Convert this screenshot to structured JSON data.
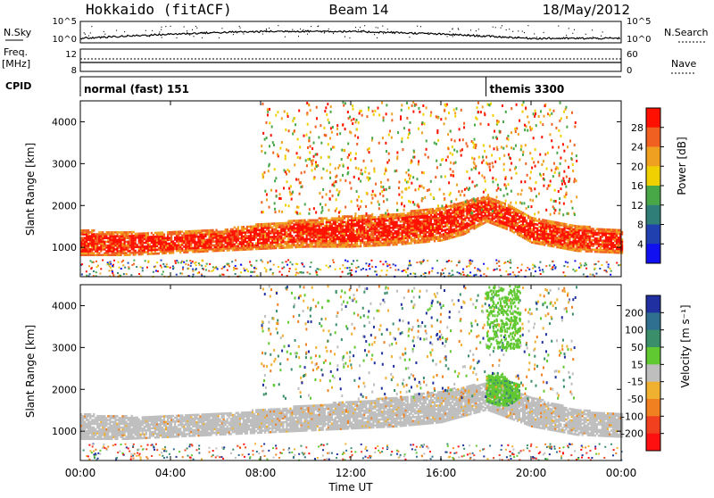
{
  "header": {
    "station": "Hokkaido (fitACF)",
    "beam": "Beam 14",
    "date": "18/May/2012"
  },
  "strip": {
    "nsky_label": "N.Sky",
    "nsky_ticks": [
      "10^5",
      "10^0"
    ],
    "nsearch_label": "N.Search",
    "nsearch_ticks": [
      "10^5",
      "10^0"
    ],
    "freq_label": "Freq.",
    "freq_unit": "[MHz]",
    "freq_ticks": [
      "12",
      "8"
    ],
    "nave_label": "Nave",
    "nave_ticks": [
      "60",
      "0"
    ],
    "cpid_label": "CPID",
    "cpid_segments": [
      {
        "name": "normal (fast) 151",
        "start_hour": 0,
        "end_hour": 18
      },
      {
        "name": "themis 3300",
        "start_hour": 18,
        "end_hour": 24
      }
    ]
  },
  "power_panel": {
    "ylabel": "Slant Range [km]",
    "yticks": [
      "1000",
      "2000",
      "3000",
      "4000"
    ],
    "colorbar_label": "Power [dB]",
    "colorbar_ticks": [
      "4",
      "8",
      "12",
      "16",
      "20",
      "24",
      "28"
    ],
    "colors": [
      "#1010f0",
      "#2040b0",
      "#2f7f78",
      "#48a848",
      "#f0d000",
      "#f0a020",
      "#f06020",
      "#ff1000"
    ]
  },
  "velocity_panel": {
    "ylabel": "Slant Range [km]",
    "yticks": [
      "1000",
      "2000",
      "3000",
      "4000"
    ],
    "colorbar_label": "Velocity [m s⁻¹]",
    "colorbar_ticks": [
      "200",
      "100",
      "50",
      "15",
      "-15",
      "-50",
      "-100",
      "-200"
    ],
    "colors": [
      "#2030a0",
      "#2f6f90",
      "#3a8f6a",
      "#60c830",
      "#bebebe",
      "#f0b030",
      "#f08020",
      "#f04020",
      "#ff1010"
    ]
  },
  "xaxis": {
    "label": "Time UT",
    "ticks": [
      "00:00",
      "04:00",
      "08:00",
      "12:00",
      "16:00",
      "20:00",
      "00:00"
    ]
  },
  "chart_data": [
    {
      "type": "heatmap",
      "title": "Power",
      "xlabel": "Time UT",
      "ylabel": "Slant Range [km]",
      "colorbar": "Power [dB]",
      "x_range_hours": [
        0,
        24
      ],
      "ylim": [
        300,
        4500
      ],
      "cbar_range": [
        0,
        32
      ],
      "bands": [
        {
          "x": [
            0,
            2,
            4,
            6,
            8,
            10,
            12,
            14,
            16,
            17,
            18,
            19,
            20,
            22,
            24
          ],
          "range_low": [
            800,
            800,
            850,
            900,
            950,
            1000,
            1000,
            1050,
            1150,
            1300,
            1600,
            1400,
            1100,
            900,
            850
          ],
          "range_high": [
            1400,
            1350,
            1350,
            1400,
            1550,
            1650,
            1750,
            1800,
            1950,
            2100,
            2200,
            2000,
            1700,
            1500,
            1400
          ],
          "power": 28
        }
      ],
      "scatter_note": "sparse echoes 2000-4500 km from 08:00 to 22:00"
    },
    {
      "type": "heatmap",
      "title": "Velocity",
      "xlabel": "Time UT",
      "ylabel": "Slant Range [km]",
      "colorbar": "Velocity [m s^-1]",
      "x_range_hours": [
        0,
        24
      ],
      "ylim": [
        300,
        4500
      ],
      "cbar_range": [
        -200,
        200
      ],
      "bands": [
        {
          "x": [
            0,
            2,
            4,
            6,
            8,
            10,
            12,
            14,
            16,
            18,
            20,
            22,
            24
          ],
          "range_low": [
            800,
            800,
            850,
            900,
            950,
            1000,
            1050,
            1100,
            1200,
            1500,
            1100,
            900,
            850
          ],
          "range_high": [
            1400,
            1350,
            1350,
            1400,
            1500,
            1600,
            1700,
            1800,
            1950,
            2150,
            1800,
            1500,
            1400
          ],
          "velocity": 0
        },
        {
          "x": [
            18,
            18.5,
            19,
            19.5
          ],
          "range_low": [
            1700,
            1600,
            1600,
            1800
          ],
          "range_high": [
            2300,
            2400,
            2200,
            2100
          ],
          "velocity": 50
        }
      ]
    }
  ]
}
